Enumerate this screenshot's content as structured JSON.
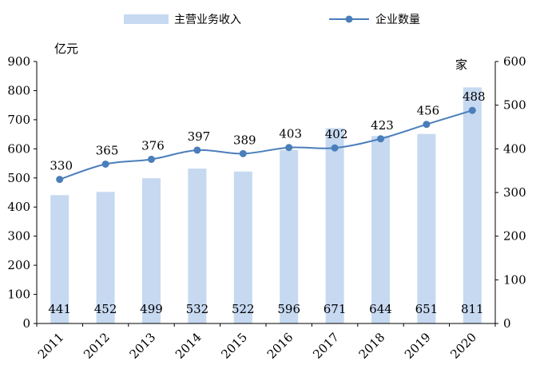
{
  "chart_data": {
    "type": "bar+line",
    "categories": [
      "2011",
      "2012",
      "2013",
      "2014",
      "2015",
      "2016",
      "2017",
      "2018",
      "2019",
      "2020"
    ],
    "series": [
      {
        "name": "主营业务收入",
        "type": "bar",
        "axis": "left",
        "color": "#c6d9f1",
        "values": [
          441,
          452,
          499,
          532,
          522,
          596,
          671,
          644,
          651,
          811
        ]
      },
      {
        "name": "企业数量",
        "type": "line",
        "axis": "right",
        "color": "#4a7ebb",
        "values": [
          330,
          365,
          376,
          397,
          389,
          403,
          402,
          423,
          456,
          488
        ]
      }
    ],
    "y_left": {
      "unit": "亿元",
      "ylim": [
        0,
        900
      ],
      "ticks": [
        "0",
        "100",
        "200",
        "300",
        "400",
        "500",
        "600",
        "700",
        "800",
        "900"
      ]
    },
    "y_right": {
      "unit": "家",
      "ylim": [
        0,
        600
      ],
      "ticks": [
        "0",
        "100",
        "200",
        "300",
        "400",
        "500",
        "600"
      ]
    },
    "grid": false,
    "legend_position": "top"
  }
}
